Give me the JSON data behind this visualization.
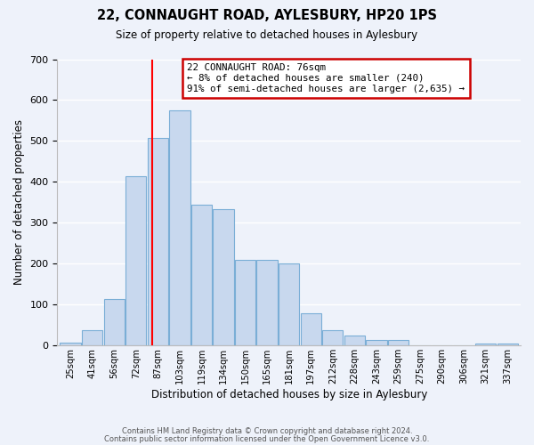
{
  "title": "22, CONNAUGHT ROAD, AYLESBURY, HP20 1PS",
  "subtitle": "Size of property relative to detached houses in Aylesbury",
  "xlabel": "Distribution of detached houses by size in Aylesbury",
  "ylabel": "Number of detached properties",
  "bar_labels": [
    "25sqm",
    "41sqm",
    "56sqm",
    "72sqm",
    "87sqm",
    "103sqm",
    "119sqm",
    "134sqm",
    "150sqm",
    "165sqm",
    "181sqm",
    "197sqm",
    "212sqm",
    "228sqm",
    "243sqm",
    "259sqm",
    "275sqm",
    "290sqm",
    "306sqm",
    "321sqm",
    "337sqm"
  ],
  "bar_values": [
    8,
    37,
    113,
    415,
    507,
    575,
    345,
    333,
    210,
    210,
    200,
    80,
    37,
    25,
    13,
    13,
    0,
    0,
    0,
    5,
    5
  ],
  "bar_color": "#c8d8ee",
  "bar_edge_color": "#7aaed6",
  "annotation_text": "22 CONNAUGHT ROAD: 76sqm\n← 8% of detached houses are smaller (240)\n91% of semi-detached houses are larger (2,635) →",
  "annotation_box_color": "white",
  "annotation_box_edge_color": "#cc0000",
  "ylim": [
    0,
    700
  ],
  "yticks": [
    0,
    100,
    200,
    300,
    400,
    500,
    600,
    700
  ],
  "footer_line1": "Contains HM Land Registry data © Crown copyright and database right 2024.",
  "footer_line2": "Contains public sector information licensed under the Open Government Licence v3.0.",
  "bg_color": "#eef2fa",
  "grid_color": "white",
  "vline_position": 3.75
}
